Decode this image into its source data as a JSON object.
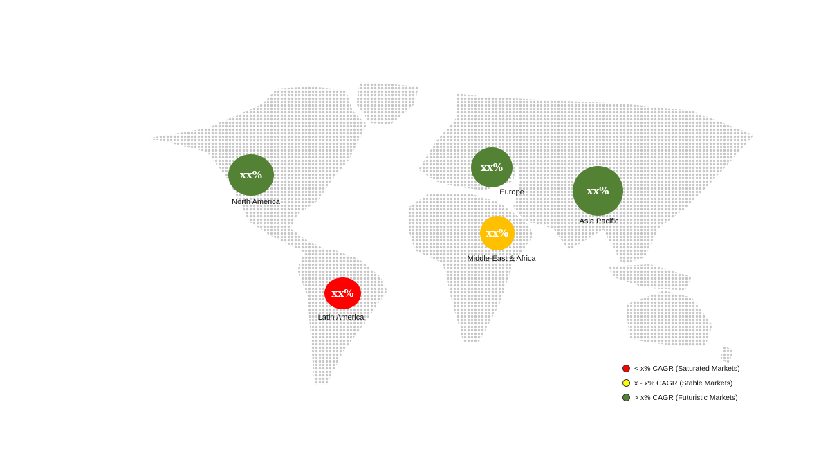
{
  "regions": [
    {
      "name": "North America",
      "value": "xx%",
      "color": "#548235"
    },
    {
      "name": "Europe",
      "value": "xx%",
      "color": "#548235"
    },
    {
      "name": "Asia Pacific",
      "value": "xx%",
      "color": "#548235"
    },
    {
      "name": "Middle-East & Africa",
      "value": "xx%",
      "color": "#ffc000"
    },
    {
      "name": "Latin America",
      "value": "xx%",
      "color": "#ff0000"
    }
  ],
  "legend": [
    {
      "label": "< x% CAGR (Saturated Markets)",
      "color": "#ff0000"
    },
    {
      "label": "x - x% CAGR (Stable Markets)",
      "color": "#ffff00"
    },
    {
      "label": "> x% CAGR (Futuristic Markets)",
      "color": "#548235"
    }
  ],
  "map_color": "#c6c6c6"
}
